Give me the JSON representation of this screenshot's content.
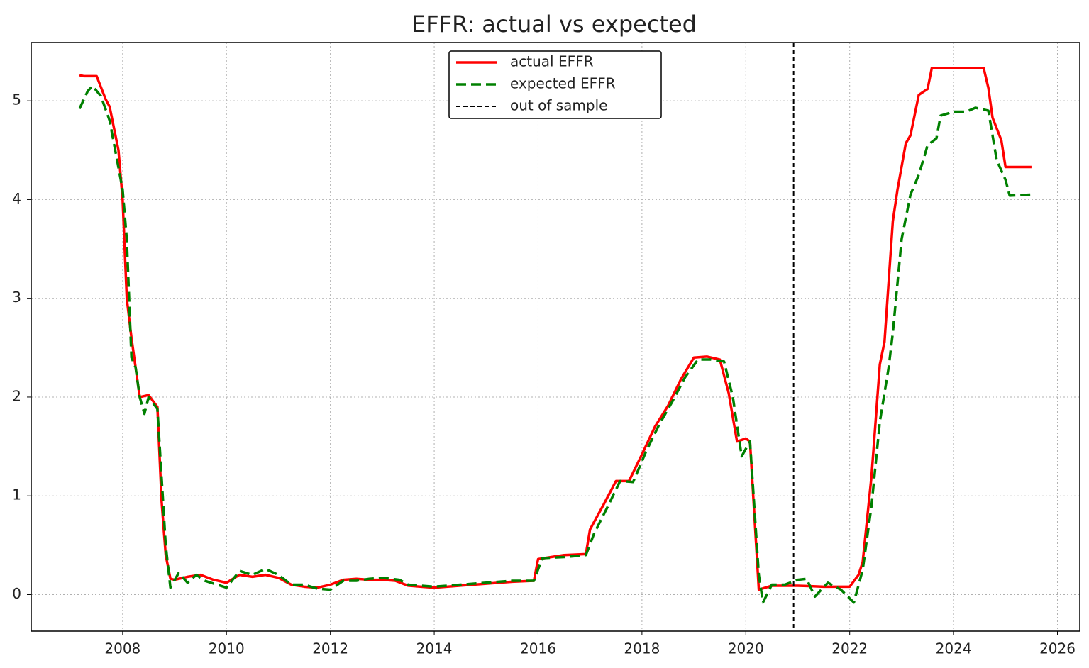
{
  "chart_data": {
    "type": "line",
    "title": "EFFR: actual vs expected",
    "xlim": [
      2006.24,
      2026.43
    ],
    "ylim": [
      -0.37,
      5.59
    ],
    "xticks": [
      2008,
      2010,
      2012,
      2014,
      2016,
      2018,
      2020,
      2022,
      2024,
      2026
    ],
    "yticks": [
      0,
      1,
      2,
      3,
      4,
      5
    ],
    "grid": true,
    "legend": "upper center",
    "series": [
      {
        "name": "actual EFFR",
        "color": "#ff0000",
        "dash": false,
        "x": [
          2007.17,
          2007.25,
          2007.5,
          2007.67,
          2007.75,
          2007.92,
          2008.0,
          2008.08,
          2008.17,
          2008.25,
          2008.33,
          2008.5,
          2008.67,
          2008.75,
          2008.83,
          2008.92,
          2009.0,
          2009.25,
          2009.5,
          2009.75,
          2010.0,
          2010.25,
          2010.5,
          2010.75,
          2011.0,
          2011.25,
          2011.5,
          2011.75,
          2012.0,
          2012.25,
          2012.5,
          2012.75,
          2013.0,
          2013.25,
          2013.5,
          2013.75,
          2014.0,
          2014.5,
          2015.0,
          2015.5,
          2015.92,
          2016.0,
          2016.5,
          2016.92,
          2017.0,
          2017.25,
          2017.5,
          2017.75,
          2018.0,
          2018.25,
          2018.5,
          2018.75,
          2019.0,
          2019.25,
          2019.5,
          2019.67,
          2019.83,
          2020.0,
          2020.08,
          2020.25,
          2020.5,
          2020.75,
          2021.0,
          2021.5,
          2021.75,
          2022.0,
          2022.17,
          2022.25,
          2022.42,
          2022.58,
          2022.67,
          2022.83,
          2022.92,
          2023.08,
          2023.17,
          2023.33,
          2023.5,
          2023.58,
          2024.58,
          2024.67,
          2024.75,
          2024.92,
          2025.0,
          2025.5
        ],
        "values": [
          5.26,
          5.25,
          5.25,
          5.02,
          4.94,
          4.5,
          4.0,
          3.0,
          2.6,
          2.3,
          2.0,
          2.02,
          1.9,
          0.95,
          0.4,
          0.16,
          0.15,
          0.18,
          0.2,
          0.15,
          0.12,
          0.2,
          0.18,
          0.2,
          0.17,
          0.1,
          0.08,
          0.07,
          0.1,
          0.15,
          0.16,
          0.15,
          0.15,
          0.14,
          0.09,
          0.08,
          0.07,
          0.09,
          0.11,
          0.13,
          0.14,
          0.36,
          0.4,
          0.41,
          0.66,
          0.9,
          1.15,
          1.15,
          1.42,
          1.7,
          1.91,
          2.18,
          2.4,
          2.41,
          2.38,
          2.04,
          1.55,
          1.58,
          1.55,
          0.05,
          0.09,
          0.09,
          0.09,
          0.08,
          0.08,
          0.08,
          0.2,
          0.33,
          1.2,
          2.33,
          2.56,
          3.78,
          4.1,
          4.57,
          4.65,
          5.06,
          5.12,
          5.33,
          5.33,
          5.13,
          4.83,
          4.6,
          4.33,
          4.33
        ]
      },
      {
        "name": "expected EFFR",
        "color": "#008000",
        "dash": true,
        "x": [
          2007.17,
          2007.33,
          2007.42,
          2007.58,
          2007.75,
          2008.0,
          2008.08,
          2008.17,
          2008.25,
          2008.33,
          2008.42,
          2008.5,
          2008.67,
          2008.83,
          2008.92,
          2009.08,
          2009.25,
          2009.42,
          2009.58,
          2010.0,
          2010.25,
          2010.5,
          2010.75,
          2011.0,
          2011.25,
          2011.5,
          2011.75,
          2012.0,
          2012.25,
          2012.5,
          2012.75,
          2013.0,
          2013.33,
          2013.5,
          2014.0,
          2014.5,
          2015.0,
          2015.5,
          2015.92,
          2016.08,
          2016.5,
          2016.92,
          2017.08,
          2017.33,
          2017.58,
          2017.83,
          2018.08,
          2018.33,
          2018.58,
          2018.83,
          2019.08,
          2019.33,
          2019.58,
          2019.75,
          2019.92,
          2020.08,
          2020.25,
          2020.33,
          2020.5,
          2020.75,
          2021.0,
          2021.17,
          2021.33,
          2021.58,
          2021.83,
          2022.08,
          2022.25,
          2022.42,
          2022.58,
          2022.75,
          2022.83,
          2023.0,
          2023.17,
          2023.33,
          2023.5,
          2023.67,
          2023.75,
          2024.0,
          2024.25,
          2024.42,
          2024.67,
          2024.83,
          2025.0,
          2025.08,
          2025.5
        ],
        "values": [
          4.92,
          5.1,
          5.15,
          5.05,
          4.8,
          4.1,
          3.6,
          2.4,
          2.3,
          2.0,
          1.83,
          2.0,
          1.88,
          0.5,
          0.07,
          0.22,
          0.12,
          0.2,
          0.14,
          0.07,
          0.24,
          0.2,
          0.26,
          0.2,
          0.1,
          0.1,
          0.06,
          0.05,
          0.14,
          0.14,
          0.16,
          0.17,
          0.15,
          0.1,
          0.08,
          0.1,
          0.12,
          0.14,
          0.14,
          0.37,
          0.38,
          0.4,
          0.62,
          0.88,
          1.15,
          1.14,
          1.45,
          1.72,
          1.95,
          2.2,
          2.38,
          2.38,
          2.36,
          2.0,
          1.4,
          1.55,
          0.2,
          -0.08,
          0.1,
          0.1,
          0.15,
          0.16,
          -0.02,
          0.12,
          0.05,
          -0.08,
          0.25,
          0.9,
          1.75,
          2.3,
          2.65,
          3.6,
          4.05,
          4.25,
          4.55,
          4.62,
          4.85,
          4.89,
          4.89,
          4.93,
          4.9,
          4.4,
          4.2,
          4.04,
          4.05
        ]
      }
    ],
    "vline": {
      "name": "out of sample",
      "x": 2020.92,
      "color": "#000000"
    }
  }
}
